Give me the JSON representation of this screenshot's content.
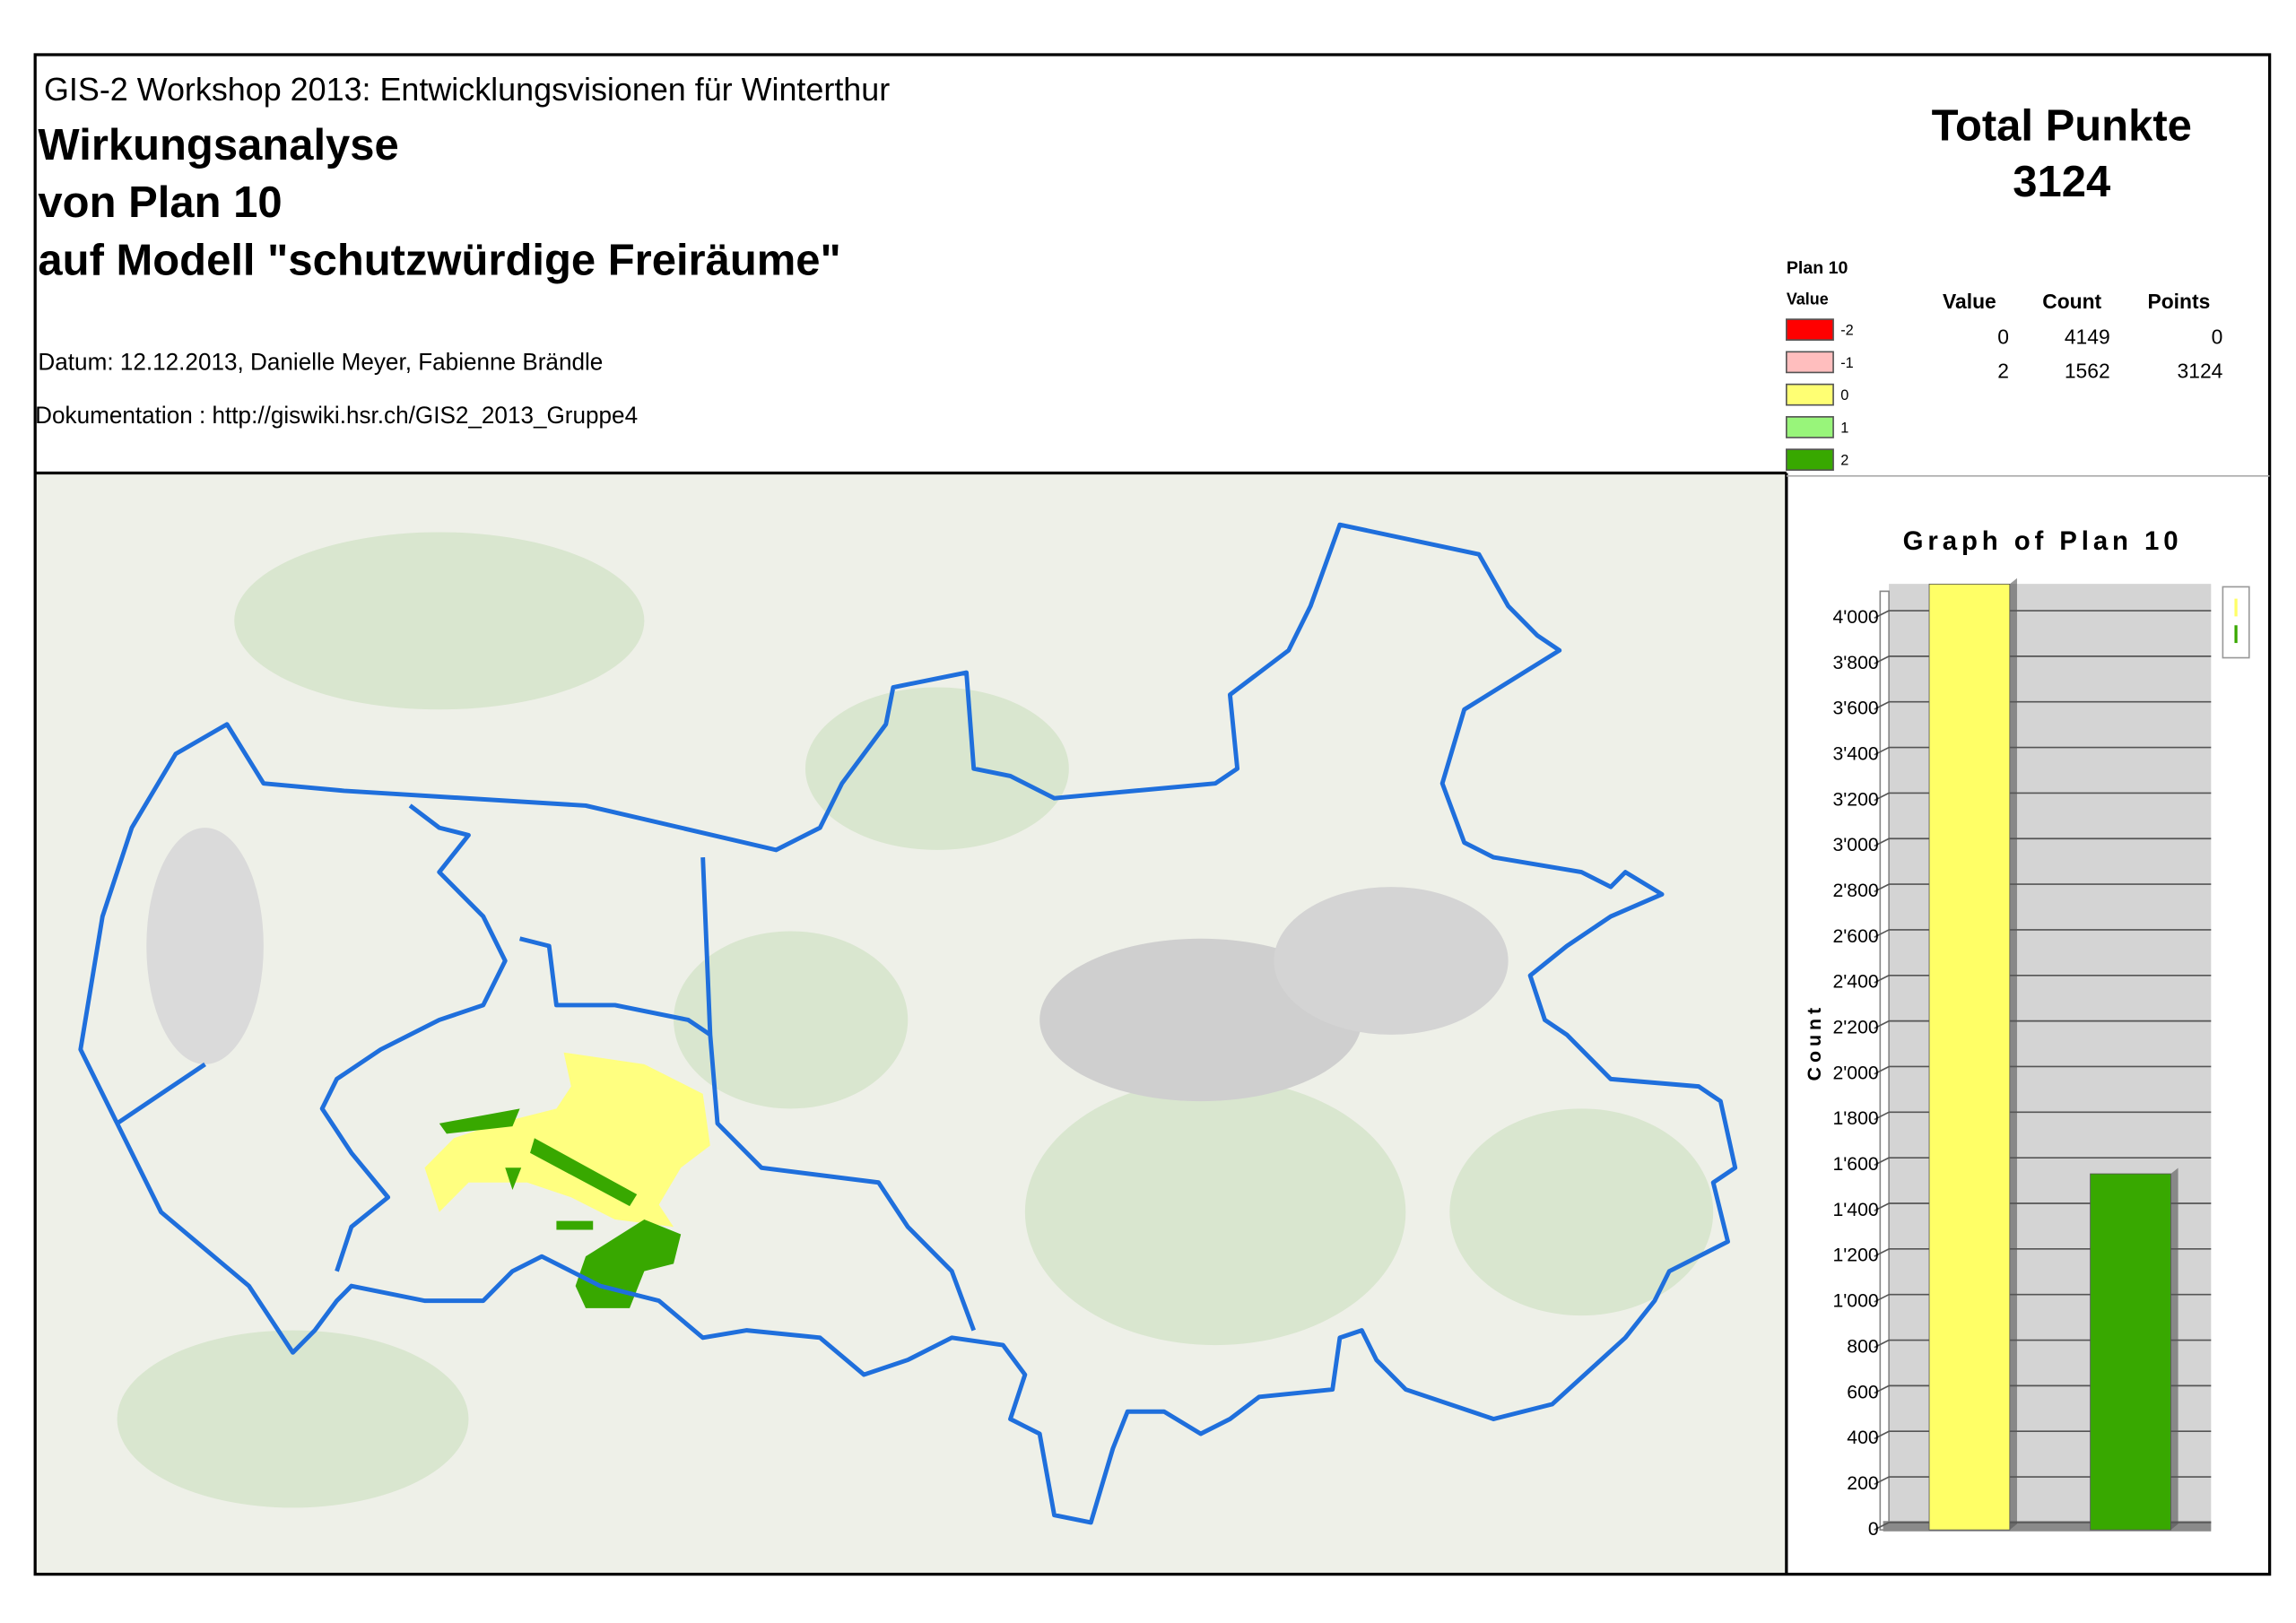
{
  "header": {
    "subtitle": "GIS-2 Workshop 2013: Entwicklungsvisionen für Winterthur",
    "title_lines": [
      "Wirkungsanalyse",
      "von Plan 10",
      "auf Modell \"schutzwürdige Freiräume\""
    ],
    "date": "Datum: 12.12.2013, Danielle Meyer, Fabienne Brändle",
    "documentation": "Dokumentation : http://giswiki.hsr.ch/GIS2_2013_Gruppe4"
  },
  "total": {
    "label": "Total Punkte",
    "value": 3124
  },
  "legend": {
    "title": "Plan 10",
    "subtitle": "Value",
    "items": [
      {
        "label": "-2",
        "color": "#ff0000"
      },
      {
        "label": "-1",
        "color": "#ffbebe"
      },
      {
        "label": "0",
        "color": "#ffff73"
      },
      {
        "label": "1",
        "color": "#98f57a"
      },
      {
        "label": "2",
        "color": "#38a800"
      }
    ]
  },
  "table": {
    "headers": [
      "Value",
      "Count",
      "Points"
    ],
    "rows": [
      [
        0,
        4149,
        0
      ],
      [
        2,
        1562,
        3124
      ]
    ]
  },
  "chart_data": {
    "type": "bar",
    "title": "Graph of Plan 10",
    "y_label": "Count",
    "categories": [
      null,
      null
    ],
    "series": [
      {
        "values": [
          4149,
          null
        ],
        "color": "#ffff66"
      },
      {
        "values": [
          null,
          1562
        ],
        "color": "#38a800"
      }
    ],
    "ylim": [
      0,
      4150
    ],
    "yticks": [
      0,
      200,
      400,
      600,
      800,
      {
        "value": 1000,
        "label": "1'000"
      },
      {
        "value": 1200,
        "label": "1'200"
      },
      {
        "value": 1400,
        "label": "1'400"
      },
      {
        "value": 1600,
        "label": "1'600"
      },
      {
        "value": 1800,
        "label": "1'800"
      },
      {
        "value": 2000,
        "label": "2'000"
      },
      {
        "value": 2200,
        "label": "2'200"
      },
      {
        "value": 2400,
        "label": "2'400"
      },
      {
        "value": 2600,
        "label": "2'600"
      },
      {
        "value": 2800,
        "label": "2'800"
      },
      {
        "value": 3000,
        "label": "3'000"
      },
      {
        "value": 3200,
        "label": "3'200"
      },
      {
        "value": 3400,
        "label": "3'400"
      },
      {
        "value": 3600,
        "label": "3'600"
      },
      {
        "value": 3800,
        "label": "3'800"
      },
      {
        "value": 4000,
        "label": "4'000"
      }
    ],
    "grid": true
  }
}
